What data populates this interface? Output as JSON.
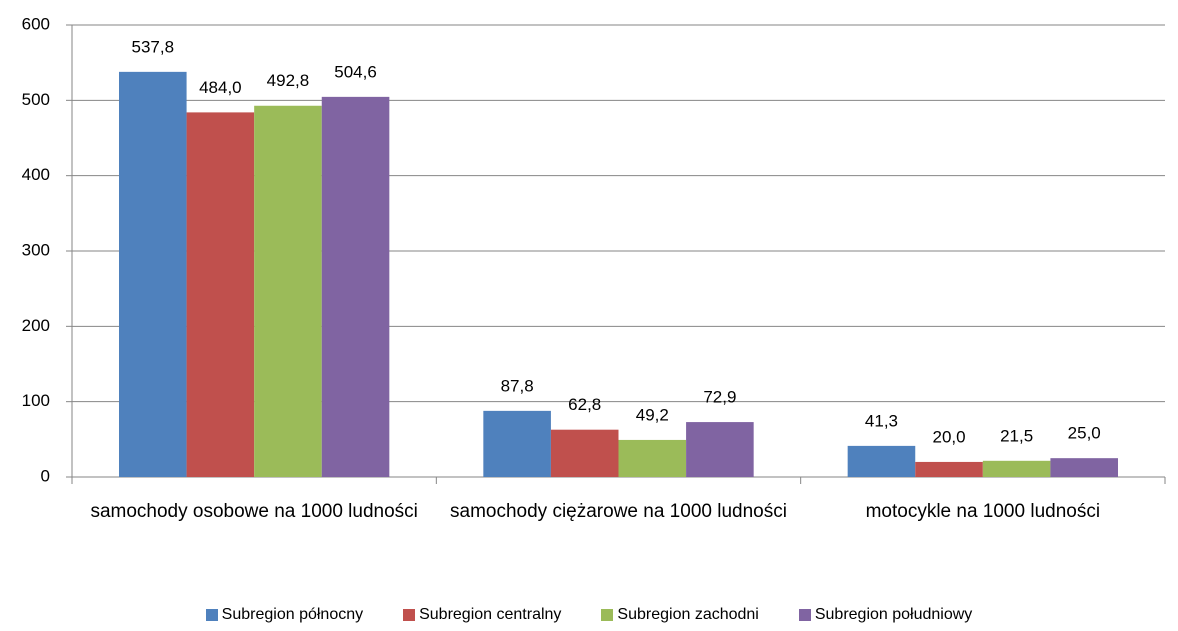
{
  "chart_data": {
    "type": "bar",
    "categories": [
      "samochody osobowe na 1000 ludności",
      "samochody ciężarowe na 1000 ludności",
      "motocykle na 1000 ludności"
    ],
    "series": [
      {
        "name": "Subregion północny",
        "color": "#4f81bd",
        "values": [
          537.8,
          87.8,
          41.3
        ],
        "value_labels": [
          "537,8",
          "87,8",
          "41,3"
        ]
      },
      {
        "name": "Subregion centralny",
        "color": "#c0504d",
        "values": [
          484.0,
          62.8,
          20.0
        ],
        "value_labels": [
          "484,0",
          "62,8",
          "20,0"
        ]
      },
      {
        "name": "Subregion zachodni",
        "color": "#9bbb59",
        "values": [
          492.8,
          49.2,
          21.5
        ],
        "value_labels": [
          "492,8",
          "49,2",
          "21,5"
        ]
      },
      {
        "name": "Subregion południowy",
        "color": "#8064a2",
        "values": [
          504.6,
          72.9,
          25.0
        ],
        "value_labels": [
          "504,6",
          "72,9",
          "25,0"
        ]
      }
    ],
    "ylim": [
      0,
      600
    ],
    "yticks": [
      0,
      100,
      200,
      300,
      400,
      500,
      600
    ],
    "grid": true,
    "legend": "bottom"
  }
}
